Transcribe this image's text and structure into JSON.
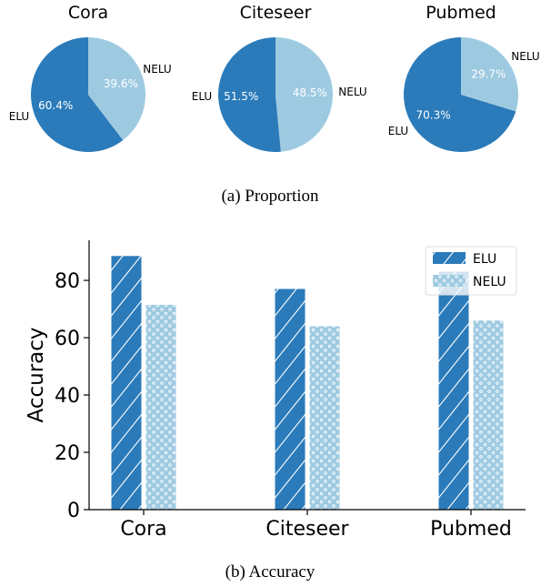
{
  "colors": {
    "elu": "#2b7bba",
    "nelu": "#9ecae1",
    "axis": "#000000",
    "text_on_slice": "#ffffff"
  },
  "panel_a": {
    "caption": "(a)  Proportion",
    "chart_data": [
      {
        "type": "pie",
        "title": "Cora",
        "slices": [
          {
            "label": "ELU",
            "value": 60.4,
            "pct_label": "60.4%"
          },
          {
            "label": "NELU",
            "value": 39.6,
            "pct_label": "39.6%"
          }
        ]
      },
      {
        "type": "pie",
        "title": "Citeseer",
        "slices": [
          {
            "label": "ELU",
            "value": 51.5,
            "pct_label": "51.5%"
          },
          {
            "label": "NELU",
            "value": 48.5,
            "pct_label": "48.5%"
          }
        ]
      },
      {
        "type": "pie",
        "title": "Pubmed",
        "slices": [
          {
            "label": "ELU",
            "value": 70.3,
            "pct_label": "70.3%"
          },
          {
            "label": "NELU",
            "value": 29.7,
            "pct_label": "29.7%"
          }
        ]
      }
    ]
  },
  "panel_b": {
    "caption": "(b)  Accuracy",
    "chart_data": {
      "type": "bar",
      "categories": [
        "Cora",
        "Citeseer",
        "Pubmed"
      ],
      "series": [
        {
          "name": "ELU",
          "values": [
            88.5,
            77,
            83
          ]
        },
        {
          "name": "NELU",
          "values": [
            71.5,
            64,
            66
          ]
        }
      ],
      "xlabel": "",
      "ylabel": "Accuracy",
      "ylim": [
        0,
        94
      ],
      "yticks": [
        0,
        20,
        40,
        60,
        80
      ],
      "legend": "top-right",
      "grid": false
    }
  }
}
